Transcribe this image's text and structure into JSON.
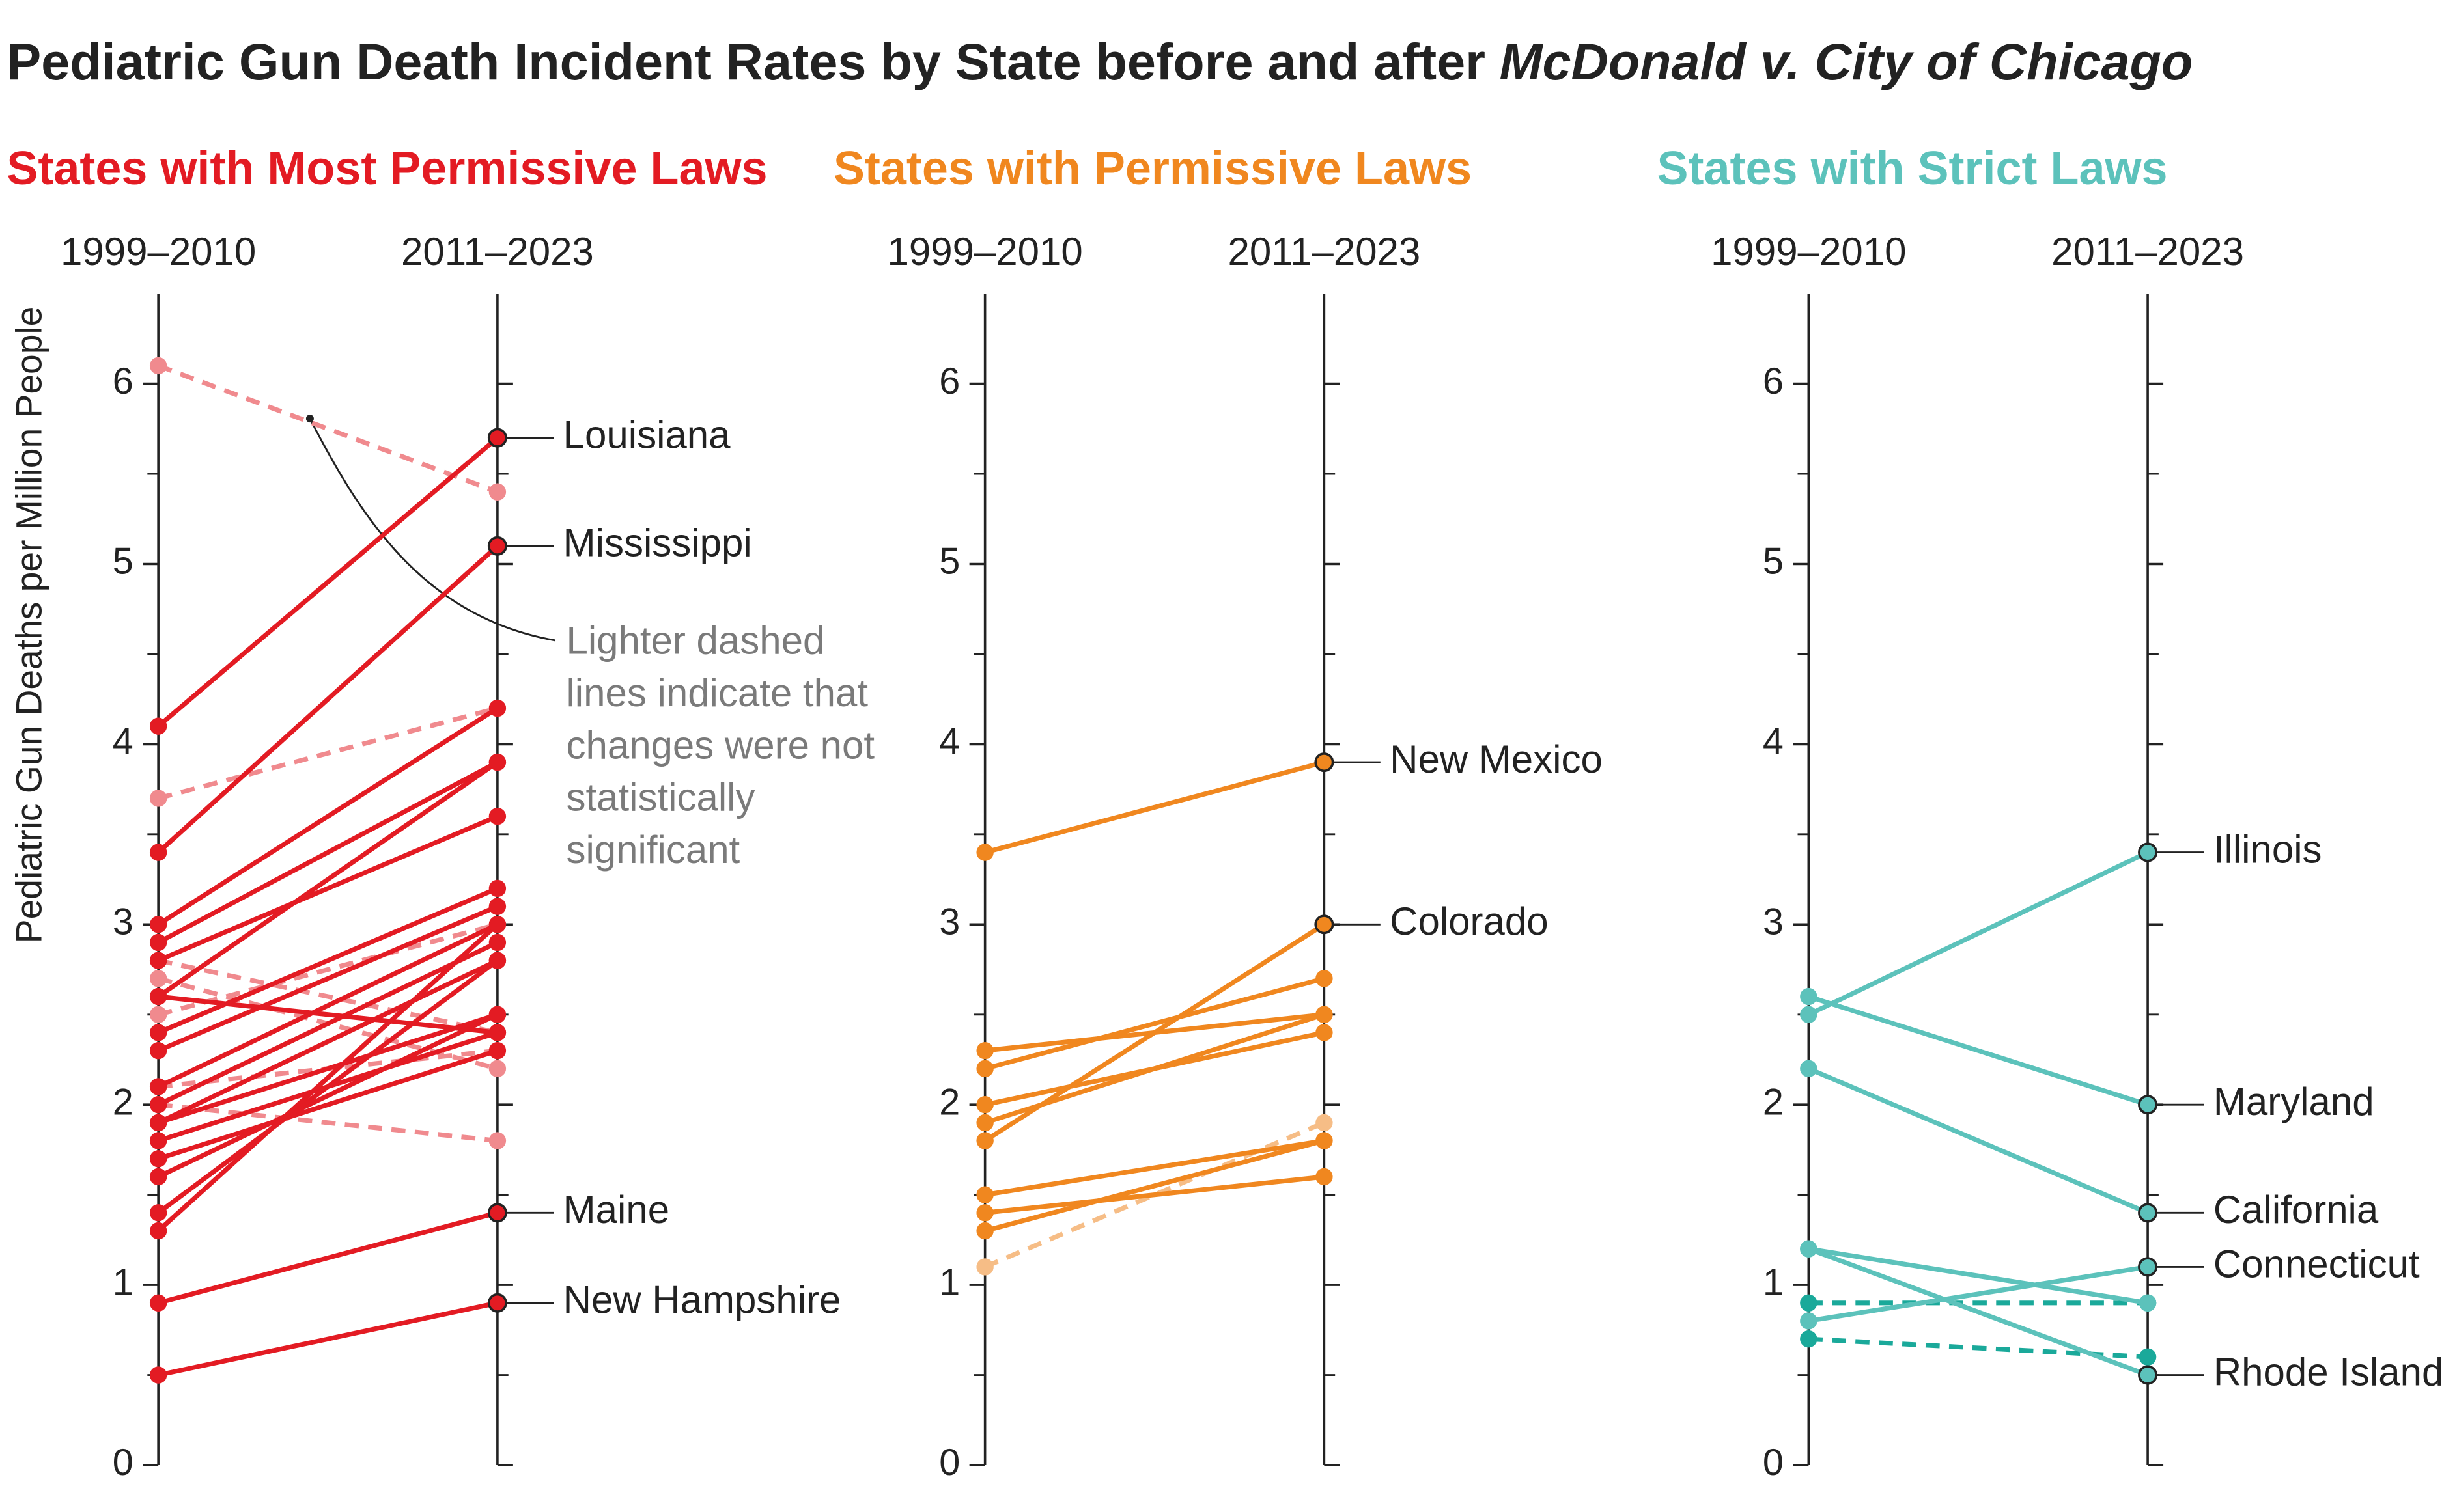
{
  "title_parts": [
    "Pediatric Gun Death Incident Rates by State before and after",
    "McDonald v. City of Chicago"
  ],
  "y_label": "Pediatric Gun Deaths per Million People",
  "annotation": [
    "Lighter dashed",
    "lines indicate that",
    "changes were not",
    "statistically",
    "significant"
  ],
  "chart_data": [
    {
      "type": "slope",
      "title": "States with Most Permissive Laws",
      "color": "#e31b23",
      "dashed_color": "#f08a8e",
      "categories": [
        "1999–2010",
        "2011–2023"
      ],
      "ylim": [
        0,
        6.5
      ],
      "yticks": [
        0,
        1,
        2,
        3,
        4,
        5,
        6
      ],
      "minor_ticks": [
        0.5,
        1.5,
        2.5,
        3.5,
        4.5,
        5.5
      ],
      "series": [
        {
          "values": [
            6.1,
            5.4
          ],
          "dashed": true
        },
        {
          "values": [
            3.7,
            4.2
          ],
          "dashed": true
        },
        {
          "values": [
            2.0,
            1.8
          ],
          "dashed": true
        },
        {
          "values": [
            2.8,
            2.4
          ],
          "dashed": true
        },
        {
          "values": [
            2.7,
            2.2
          ],
          "dashed": true
        },
        {
          "values": [
            2.5,
            3.0
          ],
          "dashed": true
        },
        {
          "values": [
            2.1,
            2.3
          ],
          "dashed": true
        },
        {
          "name": "Louisiana",
          "values": [
            4.1,
            5.7
          ]
        },
        {
          "name": "Mississippi",
          "values": [
            3.4,
            5.1
          ]
        },
        {
          "values": [
            3.0,
            4.2
          ]
        },
        {
          "values": [
            2.9,
            3.9
          ]
        },
        {
          "values": [
            2.8,
            3.6
          ]
        },
        {
          "values": [
            2.6,
            3.9
          ]
        },
        {
          "values": [
            2.4,
            3.2
          ]
        },
        {
          "values": [
            2.3,
            3.1
          ]
        },
        {
          "values": [
            2.1,
            3.0
          ]
        },
        {
          "values": [
            2.0,
            2.9
          ]
        },
        {
          "values": [
            1.9,
            2.8
          ]
        },
        {
          "values": [
            1.8,
            2.4
          ]
        },
        {
          "values": [
            1.7,
            2.3
          ]
        },
        {
          "values": [
            1.6,
            2.5
          ]
        },
        {
          "values": [
            1.4,
            2.8
          ]
        },
        {
          "values": [
            1.3,
            3.0
          ]
        },
        {
          "values": [
            2.6,
            2.4
          ]
        },
        {
          "values": [
            1.9,
            2.5
          ]
        },
        {
          "name": "Maine",
          "values": [
            0.9,
            1.4
          ]
        },
        {
          "name": "New Hampshire",
          "values": [
            0.5,
            0.9
          ]
        }
      ]
    },
    {
      "type": "slope",
      "title": "States with Permissive Laws",
      "color": "#f0871f",
      "dashed_color": "#f6bd86",
      "categories": [
        "1999–2010",
        "2011–2023"
      ],
      "ylim": [
        0,
        6.5
      ],
      "yticks": [
        0,
        1,
        2,
        3,
        4,
        5,
        6
      ],
      "minor_ticks": [
        0.5,
        1.5,
        2.5,
        3.5,
        4.5,
        5.5
      ],
      "series": [
        {
          "values": [
            1.1,
            1.9
          ],
          "dashed": true
        },
        {
          "name": "New Mexico",
          "values": [
            3.4,
            3.9
          ]
        },
        {
          "name": "Colorado",
          "values": [
            1.8,
            3.0
          ]
        },
        {
          "values": [
            2.3,
            2.5
          ]
        },
        {
          "values": [
            2.2,
            2.7
          ]
        },
        {
          "values": [
            2.0,
            2.4
          ]
        },
        {
          "values": [
            1.9,
            2.5
          ]
        },
        {
          "values": [
            1.5,
            1.8
          ]
        },
        {
          "values": [
            1.4,
            1.6
          ]
        },
        {
          "values": [
            1.3,
            1.8
          ]
        }
      ]
    },
    {
      "type": "slope",
      "title": "States with Strict Laws",
      "color": "#5cc2bb",
      "dashed_color": "#1aa99a",
      "categories": [
        "1999–2010",
        "2011–2023"
      ],
      "ylim": [
        0,
        6.5
      ],
      "yticks": [
        0,
        1,
        2,
        3,
        4,
        5,
        6
      ],
      "minor_ticks": [
        0.5,
        1.5,
        2.5,
        3.5,
        4.5,
        5.5
      ],
      "series": [
        {
          "values": [
            0.9,
            0.9
          ],
          "dashed": true
        },
        {
          "values": [
            0.7,
            0.6
          ],
          "dashed": true
        },
        {
          "name": "Illinois",
          "values": [
            2.5,
            3.4
          ]
        },
        {
          "name": "Maryland",
          "values": [
            2.6,
            2.0
          ]
        },
        {
          "name": "California",
          "values": [
            2.2,
            1.4
          ]
        },
        {
          "name": "Connecticut",
          "values": [
            0.8,
            1.1
          ]
        },
        {
          "name": "Rhode Island",
          "values": [
            1.2,
            0.5
          ]
        },
        {
          "values": [
            1.2,
            0.9
          ]
        }
      ]
    }
  ]
}
